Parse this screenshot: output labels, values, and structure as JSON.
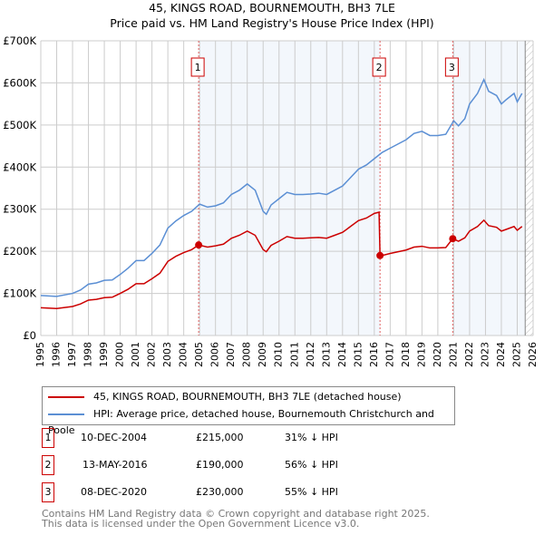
{
  "chart_data": {
    "type": "line",
    "title": "45, KINGS ROAD, BOURNEMOUTH, BH3 7LE",
    "subtitle": "Price paid vs. HM Land Registry's House Price Index (HPI)",
    "xlim": [
      1995,
      2026
    ],
    "ylim": [
      0,
      700000
    ],
    "y_ticks": [
      {
        "v": 0,
        "label": "£0"
      },
      {
        "v": 100000,
        "label": "£100K"
      },
      {
        "v": 200000,
        "label": "£200K"
      },
      {
        "v": 300000,
        "label": "£300K"
      },
      {
        "v": 400000,
        "label": "£400K"
      },
      {
        "v": 500000,
        "label": "£500K"
      },
      {
        "v": 600000,
        "label": "£600K"
      },
      {
        "v": 700000,
        "label": "£700K"
      }
    ],
    "x_ticks": [
      "1995",
      "1996",
      "1997",
      "1998",
      "1999",
      "2000",
      "2001",
      "2002",
      "2003",
      "2004",
      "2005",
      "2006",
      "2007",
      "2008",
      "2009",
      "2010",
      "2011",
      "2012",
      "2013",
      "2014",
      "2015",
      "2016",
      "2017",
      "2018",
      "2019",
      "2020",
      "2021",
      "2022",
      "2023",
      "2024",
      "2025",
      "2026"
    ],
    "grid": true,
    "shaded_ranges": [
      [
        2004.94,
        2016.36
      ],
      [
        2020.94,
        2025.5
      ]
    ],
    "hatched_from": 2025.5,
    "series": [
      {
        "name": "45, KINGS ROAD, BOURNEMOUTH, BH3 7LE (detached house)",
        "color": "#cc0000",
        "x": [
          1995,
          1996,
          1997,
          1997.5,
          1998,
          1998.5,
          1999,
          1999.5,
          2000,
          2000.5,
          2001,
          2001.5,
          2002,
          2002.5,
          2003,
          2003.5,
          2004,
          2004.5,
          2004.94,
          2005.5,
          2006,
          2006.5,
          2007,
          2007.5,
          2008,
          2008.5,
          2009,
          2009.2,
          2009.5,
          2010,
          2010.5,
          2011,
          2011.5,
          2012,
          2012.5,
          2013,
          2013.5,
          2014,
          2014.5,
          2015,
          2015.5,
          2016,
          2016.3,
          2016.36,
          2016.5,
          2017,
          2017.5,
          2018,
          2018.5,
          2019,
          2019.5,
          2020,
          2020.5,
          2020.94,
          2021.3,
          2021.7,
          2022,
          2022.5,
          2022.9,
          2023.2,
          2023.7,
          2024,
          2024.3,
          2024.8,
          2025,
          2025.3
        ],
        "y": [
          66000,
          64000,
          69000,
          75000,
          84000,
          86000,
          90000,
          91000,
          100000,
          110000,
          123000,
          123000,
          135000,
          148000,
          176000,
          188000,
          197000,
          204000,
          215000,
          210000,
          213000,
          217000,
          231000,
          238000,
          248000,
          238000,
          204000,
          199000,
          214000,
          224000,
          235000,
          231000,
          231000,
          232000,
          233000,
          231000,
          238000,
          245000,
          259000,
          273000,
          279000,
          290000,
          293000,
          190000,
          190000,
          195000,
          199000,
          203000,
          210000,
          212000,
          208000,
          208000,
          209000,
          230000,
          224000,
          232000,
          248000,
          259000,
          274000,
          261000,
          257000,
          248000,
          252000,
          259000,
          250000,
          259000
        ]
      },
      {
        "name": "HPI: Average price, detached house, Bournemouth Christchurch and Poole",
        "color": "#5b8fd4",
        "x": [
          1995,
          1996,
          1997,
          1997.5,
          1998,
          1998.5,
          1999,
          1999.5,
          2000,
          2000.5,
          2001,
          2001.5,
          2002,
          2002.5,
          2003,
          2003.5,
          2004,
          2004.5,
          2005,
          2005.5,
          2006,
          2006.5,
          2007,
          2007.5,
          2008,
          2008.5,
          2009,
          2009.2,
          2009.5,
          2010,
          2010.5,
          2011,
          2011.5,
          2012,
          2012.5,
          2013,
          2013.5,
          2014,
          2014.5,
          2015,
          2015.5,
          2016,
          2016.5,
          2017,
          2017.5,
          2018,
          2018.5,
          2019,
          2019.5,
          2020,
          2020.5,
          2021,
          2021.3,
          2021.7,
          2022,
          2022.5,
          2022.9,
          2023.2,
          2023.7,
          2024,
          2024.3,
          2024.8,
          2025,
          2025.3
        ],
        "y": [
          95000,
          93000,
          100000,
          108000,
          122000,
          125000,
          131000,
          132000,
          145000,
          160000,
          178000,
          178000,
          195000,
          215000,
          255000,
          272000,
          285000,
          295000,
          312000,
          305000,
          308000,
          315000,
          335000,
          345000,
          360000,
          345000,
          295000,
          288000,
          310000,
          325000,
          340000,
          335000,
          335000,
          336000,
          338000,
          335000,
          345000,
          355000,
          375000,
          395000,
          405000,
          420000,
          435000,
          445000,
          455000,
          465000,
          480000,
          485000,
          475000,
          475000,
          478000,
          510000,
          498000,
          515000,
          550000,
          575000,
          608000,
          580000,
          570000,
          550000,
          560000,
          575000,
          555000,
          575000
        ]
      }
    ],
    "sales": [
      {
        "label": "1",
        "x": 2004.94,
        "y": 215000,
        "date": "10-DEC-2004",
        "price": "£215,000",
        "hpi": "31% ↓ HPI"
      },
      {
        "label": "2",
        "x": 2016.36,
        "y": 190000,
        "date": "13-MAY-2016",
        "price": "£190,000",
        "hpi": "56% ↓ HPI"
      },
      {
        "label": "3",
        "x": 2020.94,
        "y": 230000,
        "date": "08-DEC-2020",
        "price": "£230,000",
        "hpi": "55% ↓ HPI"
      }
    ],
    "legend_position": "below"
  },
  "footer": {
    "line1": "Contains HM Land Registry data © Crown copyright and database right 2025.",
    "line2": "This data is licensed under the Open Government Licence v3.0."
  }
}
